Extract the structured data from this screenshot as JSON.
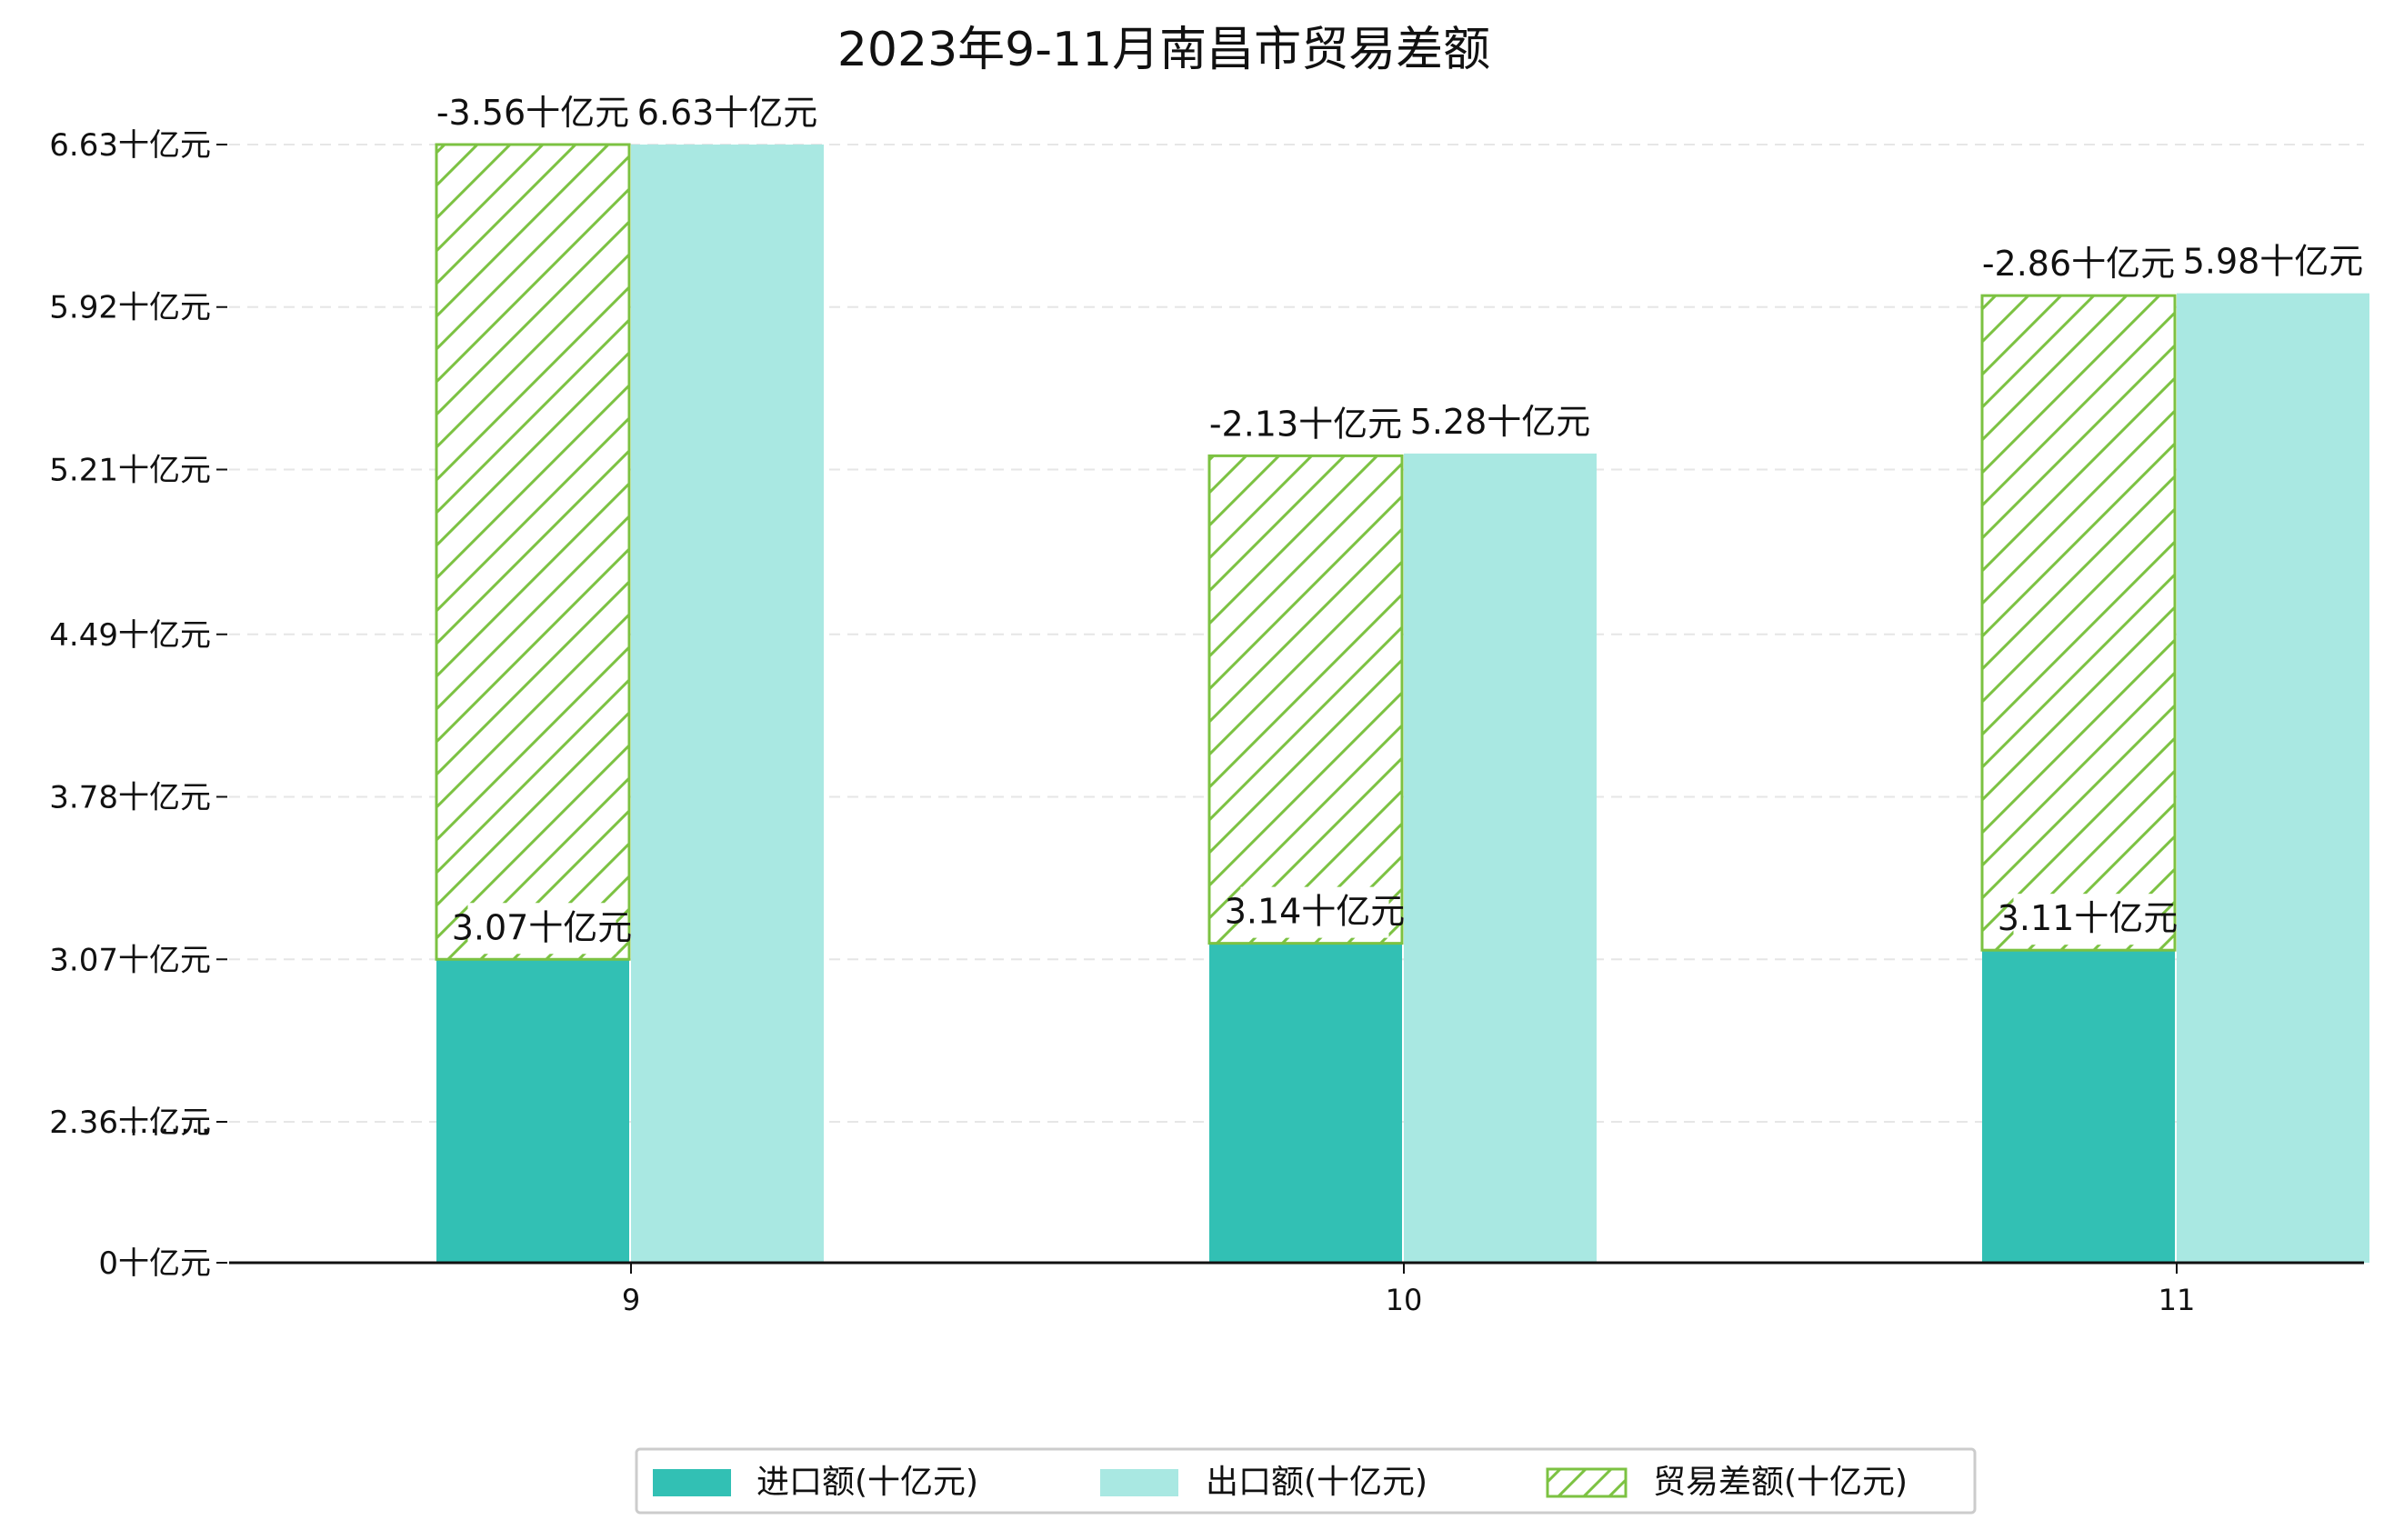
{
  "chart_data": {
    "type": "bar",
    "title": "2023年9-11月南昌市贸易差额",
    "categories": [
      "9",
      "10",
      "11"
    ],
    "series": [
      {
        "name": "进口额(十亿元)",
        "values": [
          3.07,
          3.14,
          3.11
        ],
        "labels": [
          "3.07十亿元",
          "3.14十亿元",
          "3.11十亿元"
        ],
        "color": "#32c0b4"
      },
      {
        "name": "出口额(十亿元)",
        "values": [
          6.63,
          5.28,
          5.98
        ],
        "labels": [
          "6.63十亿元",
          "5.28十亿元",
          "5.98十亿元"
        ],
        "color": "#a9e8e2"
      },
      {
        "name": "贸易差额(十亿元)",
        "values": [
          -3.56,
          -2.13,
          -2.86
        ],
        "labels": [
          "-3.56十亿元",
          "-2.13十亿元",
          "-2.86十亿元"
        ],
        "color": "#7cc242",
        "hatch": true
      }
    ],
    "y_ticks": [
      "0十亿元",
      "………",
      "2.36十亿元",
      "3.07十亿元",
      "3.78十亿元",
      "4.49十亿元",
      "5.21十亿元",
      "5.92十亿元",
      "6.63十亿元"
    ],
    "y_tick_values": [
      0,
      1.65,
      2.36,
      3.07,
      3.78,
      4.49,
      5.21,
      5.92,
      6.63
    ],
    "y_axis_break": true,
    "grid": "horizontal dashed",
    "legend_position": "bottom-center"
  }
}
